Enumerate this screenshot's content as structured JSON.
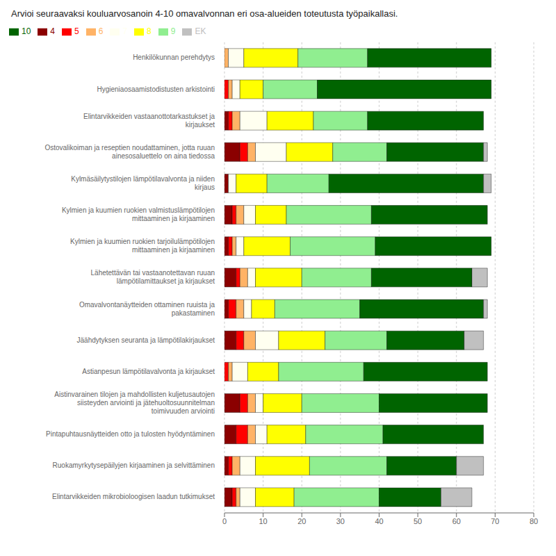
{
  "chart_data": {
    "type": "bar",
    "orientation": "horizontal",
    "stacked": true,
    "grid": true,
    "legend": "upper left",
    "title": "Arvioi seuraavaksi kouluarvosanoin 4-10 omavalvonnan eri osa-alueiden toteutusta työpaikallasi.",
    "categories": [
      "Henkilökunnan perehdytys",
      "Hygieniaosaamistodistusten arkistointi",
      "Elintarvikkeiden vastaanottotarkastukset ja\nkirjaukset",
      "Ostovalikoiman ja reseptien noudattaminen, jotta ruuan\nainesosaluettelo on aina tiedossa",
      "Kylmäsäilytystilojen lämpötilavalvonta ja niiden\nkirjaus",
      "Kylmien ja kuumien ruokien valmistuslämpötilojen\nmittaaminen ja kirjaaminen",
      "Kylmien ja kuumien ruokien tarjoilulämpötilojen\nmittaaminen ja kirjaaminen",
      "Lähetettävän tai vastaanotettavan ruuan\nlämpötilamittaukset ja kirjaukset",
      "Omavalvontanäytteiden ottaminen ruuista ja\npakastaminen",
      "Jäähdytyksen seuranta ja lämpötilakirjaukset",
      "Astianpesun lämpötilavalvonta ja kirjaukset",
      "Aistinvarainen tilojen ja mahdollisten kuljetusautojen\nsiisteyden arviointi ja jätehuoltosuunnitelman\ntoimivuuden arviointi",
      "Pintapuhtausnäytteiden otto ja tulosten hyödyntäminen",
      "Ruokamyrkytysepäilyjen kirjaaminen ja selvittäminen",
      "Elintarvikkeiden mikrobioloogisen laadun tutkimukset"
    ],
    "series": [
      {
        "name": "4",
        "color": "#8B0000",
        "values": [
          0,
          0,
          1,
          4,
          1,
          2,
          1,
          3,
          1,
          3,
          0,
          4,
          3,
          1,
          2
        ]
      },
      {
        "name": "5",
        "color": "#FF0000",
        "values": [
          0,
          1,
          1,
          2,
          0,
          1,
          1,
          1,
          2,
          2,
          1,
          2,
          3,
          1,
          1
        ]
      },
      {
        "name": "6",
        "color": "#FFB366",
        "values": [
          1,
          1,
          2,
          2,
          0,
          2,
          1,
          2,
          2,
          3,
          1,
          2,
          2,
          2,
          1
        ]
      },
      {
        "name": "7",
        "color": "#FFFFF0",
        "values": [
          4,
          2,
          7,
          8,
          2,
          3,
          2,
          2,
          2,
          6,
          4,
          2,
          3,
          4,
          4
        ]
      },
      {
        "name": "8",
        "color": "#FFFF00",
        "values": [
          14,
          6,
          12,
          12,
          8,
          8,
          12,
          12,
          6,
          12,
          8,
          10,
          10,
          14,
          10
        ]
      },
      {
        "name": "9",
        "color": "#90EE90",
        "values": [
          18,
          14,
          14,
          14,
          16,
          22,
          22,
          18,
          22,
          16,
          22,
          20,
          20,
          20,
          22
        ]
      },
      {
        "name": "10",
        "color": "#006400",
        "values": [
          32,
          45,
          30,
          25,
          40,
          30,
          30,
          26,
          32,
          20,
          32,
          28,
          26,
          18,
          16
        ]
      },
      {
        "name": "EK",
        "color": "#C0C0C0",
        "values": [
          0,
          0,
          0,
          1,
          2,
          0,
          0,
          4,
          1,
          5,
          0,
          0,
          0,
          7,
          8
        ]
      }
    ],
    "xlim": [
      0,
      80
    ],
    "xticks": [
      0,
      10,
      20,
      30,
      40,
      50,
      60,
      70,
      80
    ]
  }
}
